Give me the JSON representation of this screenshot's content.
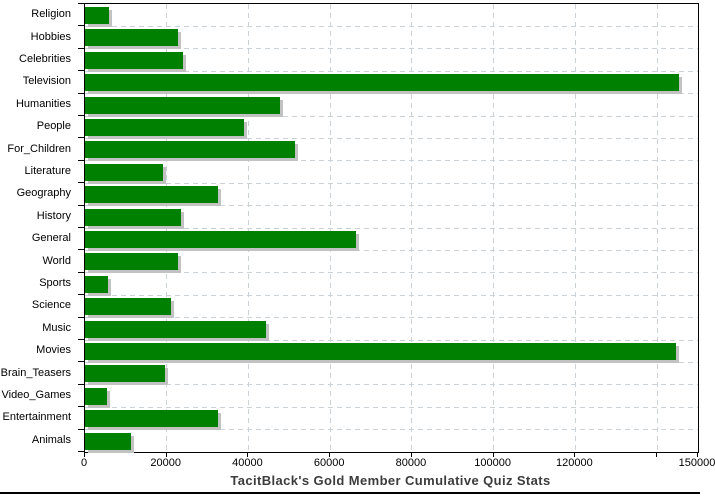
{
  "chart_data": {
    "type": "bar",
    "orientation": "horizontal",
    "title": "TacitBlack's Gold Member Cumulative Quiz Stats",
    "xlabel": "",
    "ylabel": "",
    "categories": [
      "Religion",
      "Hobbies",
      "Celebrities",
      "Television",
      "Humanities",
      "People",
      "For_Children",
      "Literature",
      "Geography",
      "History",
      "General",
      "World",
      "Sports",
      "Science",
      "Music",
      "Movies",
      "Brain_Teasers",
      "Video_Games",
      "Entertainment",
      "Animals"
    ],
    "values": [
      5900,
      22700,
      23900,
      145400,
      47600,
      39000,
      51400,
      19200,
      32600,
      23400,
      66200,
      22700,
      5700,
      21000,
      44400,
      144700,
      19600,
      5300,
      32600,
      11300
    ],
    "xlim": [
      0,
      150000
    ],
    "x_ticks": [
      {
        "v": 0,
        "label": "0"
      },
      {
        "v": 20000,
        "label": "20000"
      },
      {
        "v": 40000,
        "label": "40000"
      },
      {
        "v": 60000,
        "label": "60000"
      },
      {
        "v": 80000,
        "label": "80000"
      },
      {
        "v": 100000,
        "label": "100000"
      },
      {
        "v": 120000,
        "label": "120000"
      },
      {
        "v": 140000,
        "label": ""
      },
      {
        "v": 150000,
        "label": "150000"
      }
    ],
    "grid_v": [
      20000,
      40000,
      60000,
      80000,
      100000,
      120000,
      140000
    ],
    "grid": true,
    "legend": "none",
    "bar_color": "#008000",
    "shadow_color": "#c2c2c2",
    "grid_color": "#ccd3d8",
    "axis_color": "#000000",
    "title_color": "#3c3c3c"
  }
}
